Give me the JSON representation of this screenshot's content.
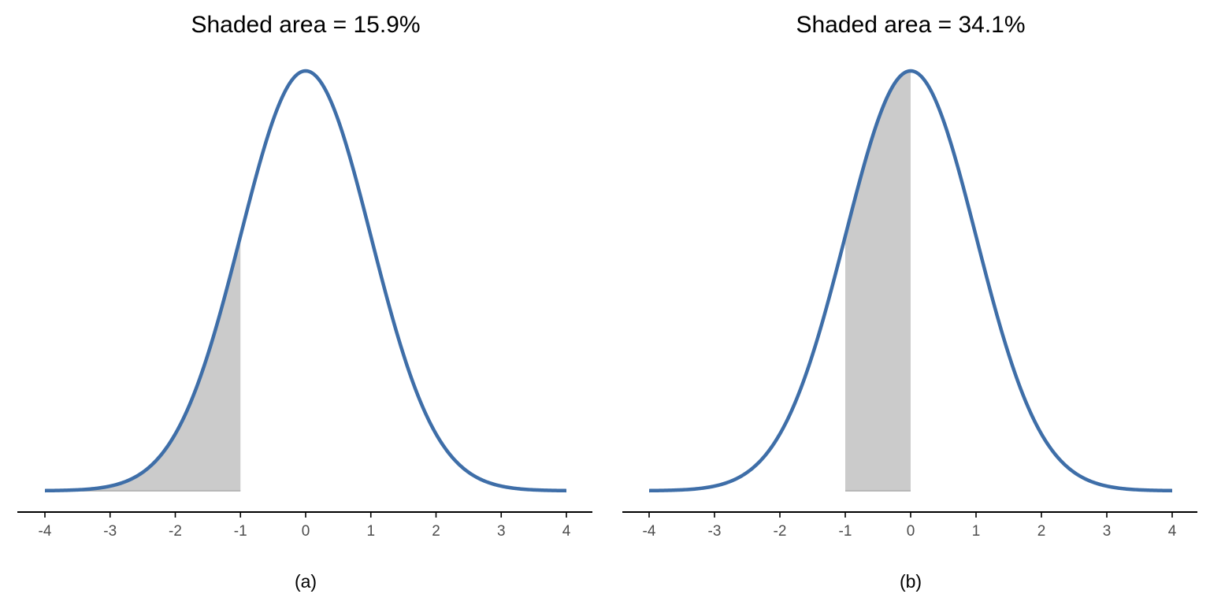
{
  "colors": {
    "curve": "#3E6EA8",
    "shade": "#CBCBCB",
    "axis": "#000000",
    "tick_text": "#4D4D4D"
  },
  "chart_data": [
    {
      "type": "area",
      "title": "Shaded area = 15.9%",
      "caption": "(a)",
      "distribution": "standard normal density",
      "xlim": [
        -4,
        4
      ],
      "x_ticks": [
        -4,
        -3,
        -2,
        -1,
        0,
        1,
        2,
        3,
        4
      ],
      "x_tick_labels": [
        "-4",
        "-3",
        "-2",
        "-1",
        "0",
        "1",
        "2",
        "3",
        "4"
      ],
      "shaded_interval": [
        -4,
        -1
      ],
      "shaded_area_percent": 15.9,
      "grid": false,
      "y_axis_shown": false
    },
    {
      "type": "area",
      "title": "Shaded area = 34.1%",
      "caption": "(b)",
      "distribution": "standard normal density",
      "xlim": [
        -4,
        4
      ],
      "x_ticks": [
        -4,
        -3,
        -2,
        -1,
        0,
        1,
        2,
        3,
        4
      ],
      "x_tick_labels": [
        "-4",
        "-3",
        "-2",
        "-1",
        "0",
        "1",
        "2",
        "3",
        "4"
      ],
      "shaded_interval": [
        -1,
        0
      ],
      "shaded_area_percent": 34.1,
      "grid": false,
      "y_axis_shown": false
    }
  ]
}
